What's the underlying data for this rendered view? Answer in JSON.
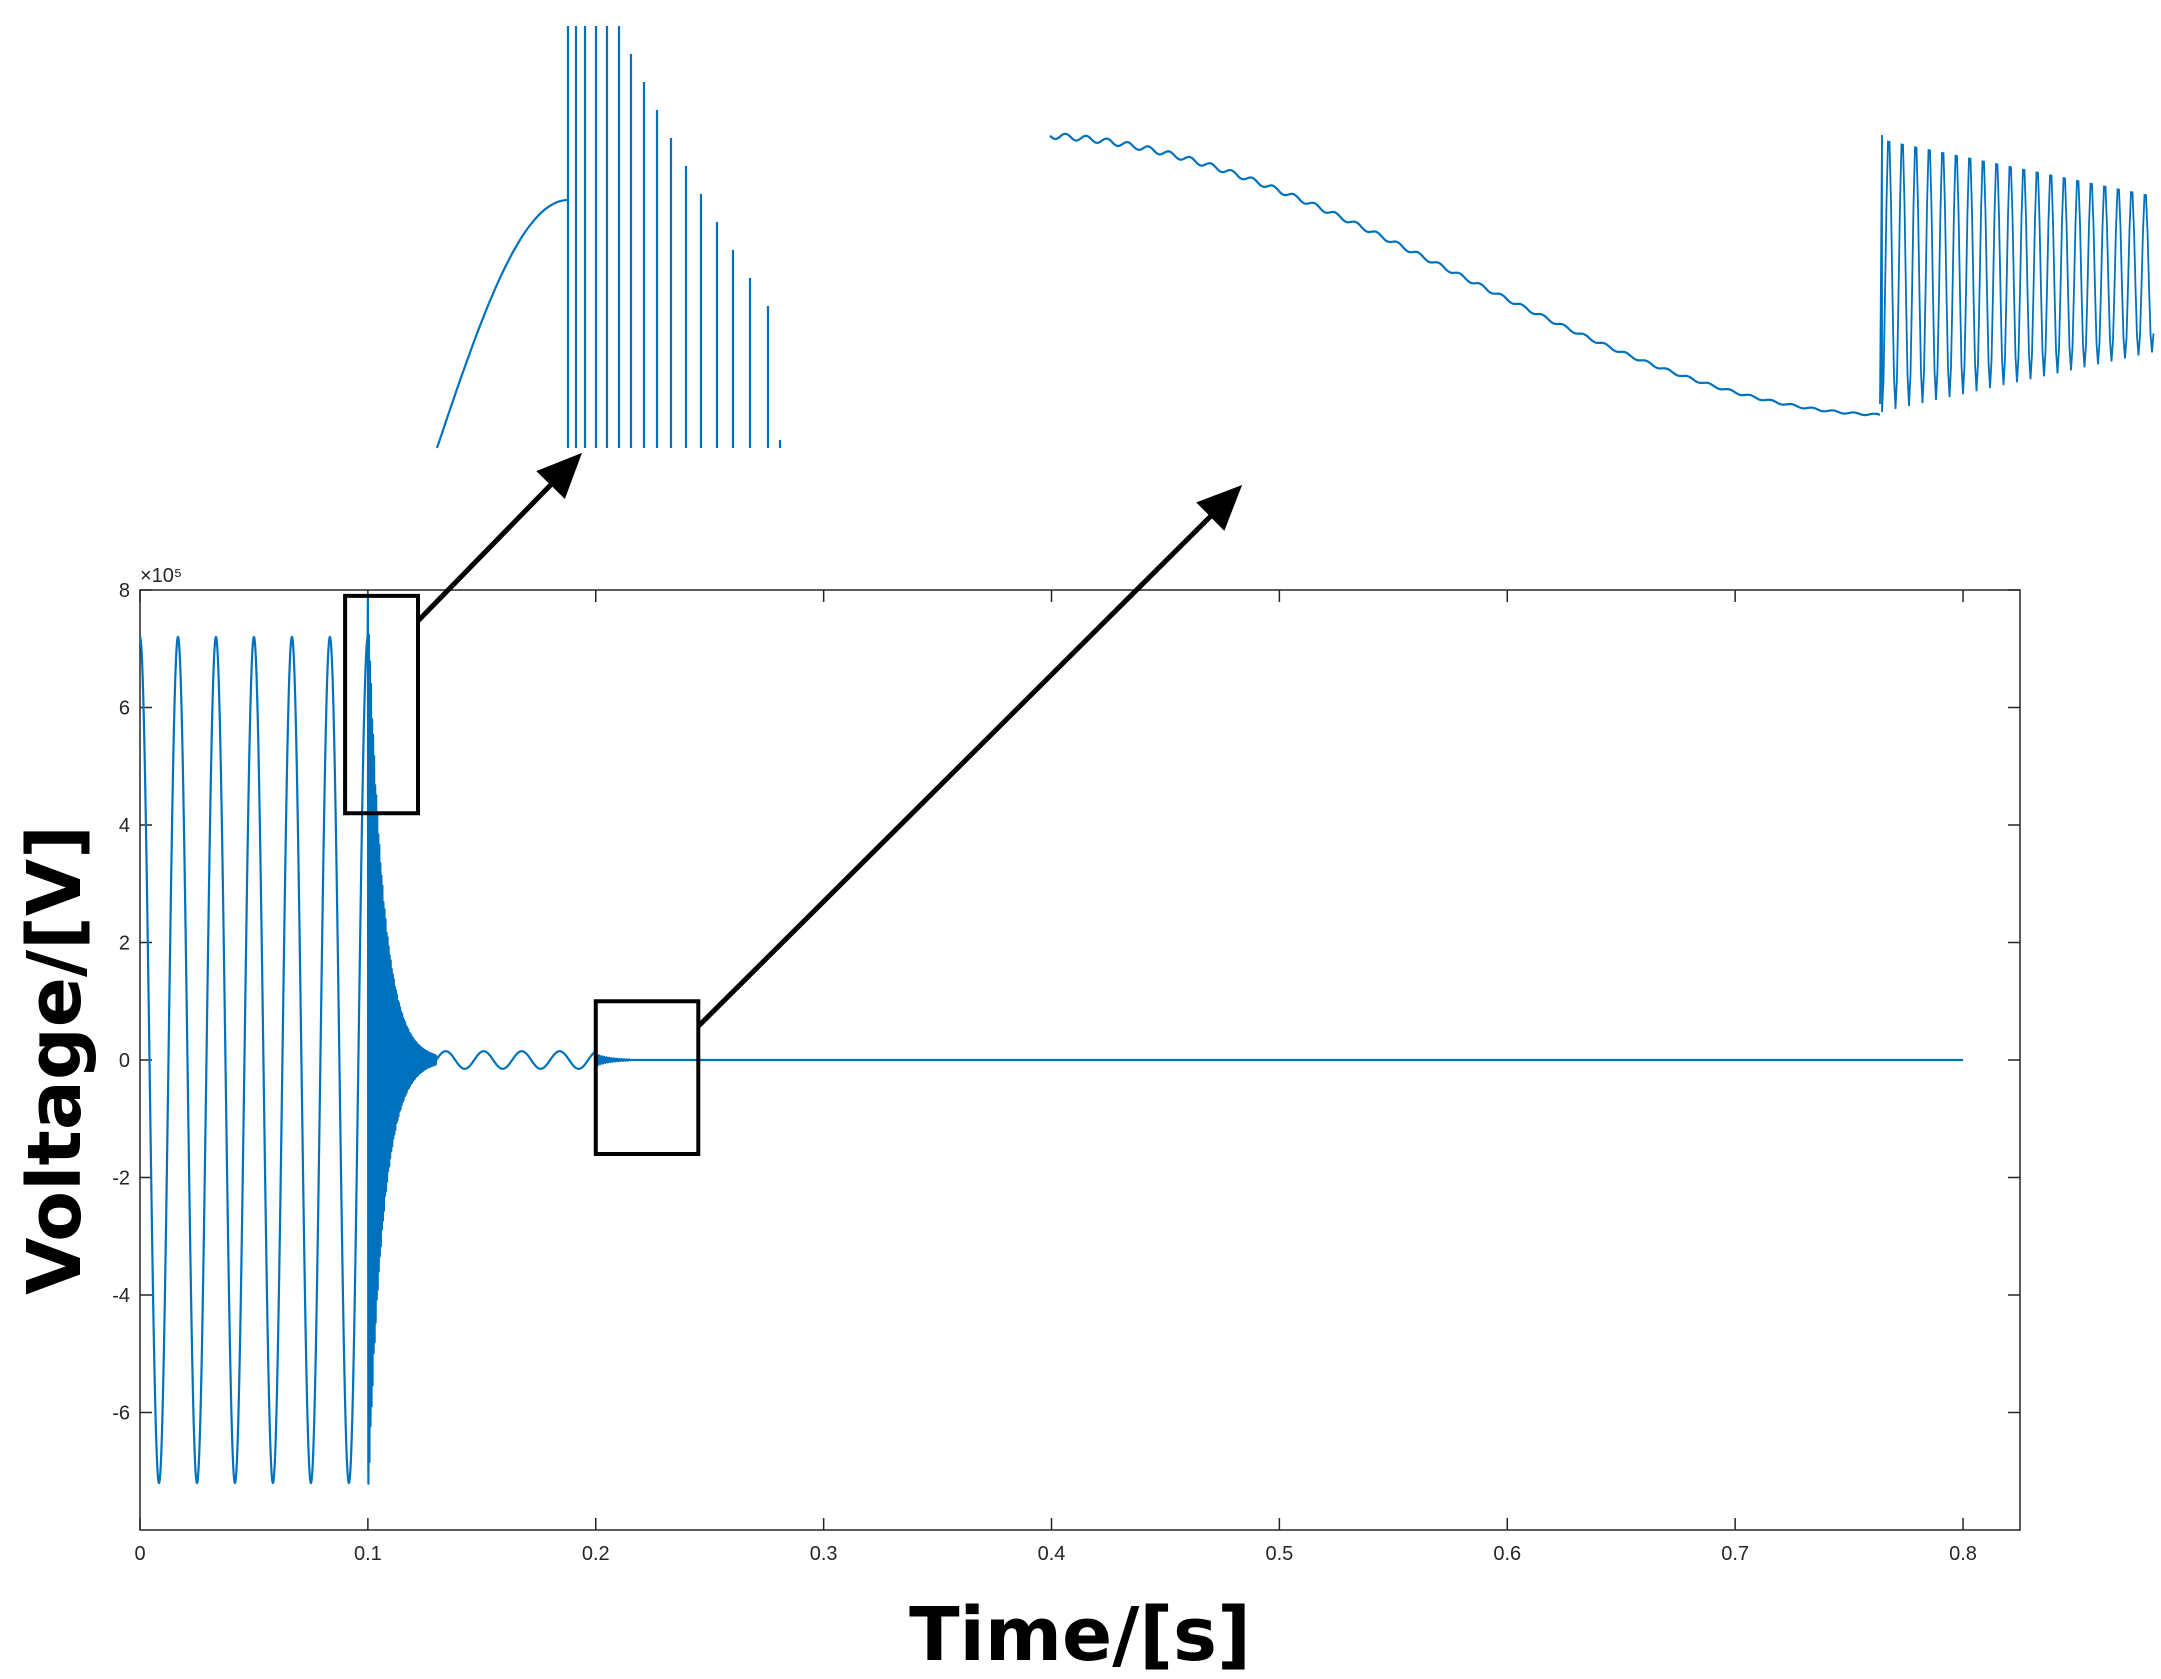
{
  "chart_data": {
    "type": "line",
    "xlabel": "Time/[s]",
    "ylabel": "Voltage/[V]",
    "y_exponent_label": "×10⁵",
    "xlim": [
      0,
      0.825
    ],
    "ylim": [
      -800000,
      800000
    ],
    "x_ticks": [
      0,
      0.1,
      0.2,
      0.3,
      0.4,
      0.5,
      0.6,
      0.7,
      0.8
    ],
    "x_tick_labels": [
      "0",
      "0.1",
      "0.2",
      "0.3",
      "0.4",
      "0.5",
      "0.6",
      "0.7",
      "0.8"
    ],
    "y_ticks": [
      -600000,
      -400000,
      -200000,
      0,
      200000,
      400000,
      600000,
      800000
    ],
    "y_tick_labels": [
      "-6",
      "-4",
      "-2",
      "0",
      "2",
      "4",
      "6",
      "8"
    ],
    "grid": false,
    "line_color": "#0072BD",
    "series": [
      {
        "segments": [
          {
            "t_start": 0,
            "t_end": 0.1,
            "waveform": "sine",
            "frequency_hz": 60,
            "amplitude_v": 720000
          },
          {
            "t_start": 0.1,
            "t_end": 0.13,
            "waveform": "decaying high-frequency oscillation",
            "peak_v": 790000,
            "trough_v": -760000
          },
          {
            "t_start": 0.13,
            "t_end": 0.2,
            "waveform": "low-amplitude oscillation",
            "amplitude_v": 15000
          },
          {
            "t_start": 0.2,
            "t_end": 0.215,
            "waveform": "small transient burst",
            "amplitude_v": 10000
          },
          {
            "t_start": 0.215,
            "t_end": 0.8,
            "waveform": "near zero",
            "value_v": 0
          }
        ]
      }
    ],
    "annotations": [
      {
        "type": "zoom-box",
        "x_range": [
          0.09,
          0.122
        ],
        "y_range": [
          420000,
          790000
        ],
        "callout": "first-inset"
      },
      {
        "type": "zoom-box",
        "x_range": [
          0.2,
          0.245
        ],
        "y_range": [
          -160000,
          100000
        ],
        "callout": "second-inset"
      }
    ],
    "insets": [
      {
        "name": "first-inset",
        "description": "zoom of breaker opening: rising sine then high-frequency spikes"
      },
      {
        "name": "second-inset",
        "description": "zoom of low-amplitude wave followed by high-frequency burst"
      }
    ]
  }
}
